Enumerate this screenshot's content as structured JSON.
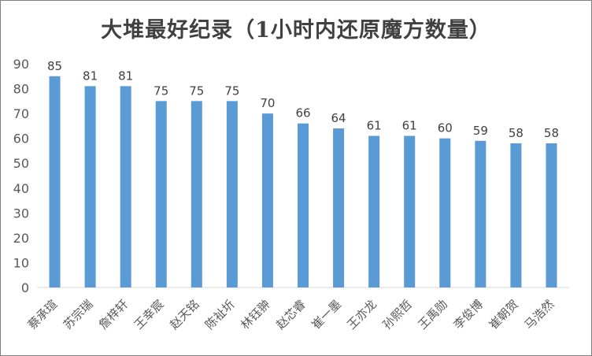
{
  "chart_data": {
    "type": "bar",
    "title": "大堆最好纪录（1小时内还原魔方数量）",
    "categories": [
      "蔡承瑄",
      "苏宗瑞",
      "詹梓轩",
      "王幸宸",
      "赵天铭",
      "陈祉圻",
      "林钰翀",
      "赵芯睿",
      "崔一墨",
      "王亦龙",
      "孙熙哲",
      "王禹勋",
      "李俊博",
      "崔朝贺",
      "马浩然"
    ],
    "values": [
      85,
      81,
      81,
      75,
      75,
      75,
      70,
      66,
      64,
      61,
      61,
      60,
      59,
      58,
      58
    ],
    "ylim": [
      0,
      90
    ],
    "yticks": [
      "0",
      "10",
      "20",
      "30",
      "40",
      "50",
      "60",
      "70",
      "80",
      "90"
    ],
    "xlabel": "",
    "ylabel": "",
    "grid": false,
    "bar_color": "#5b9bd5",
    "axis_color": "#d9d9d9"
  }
}
